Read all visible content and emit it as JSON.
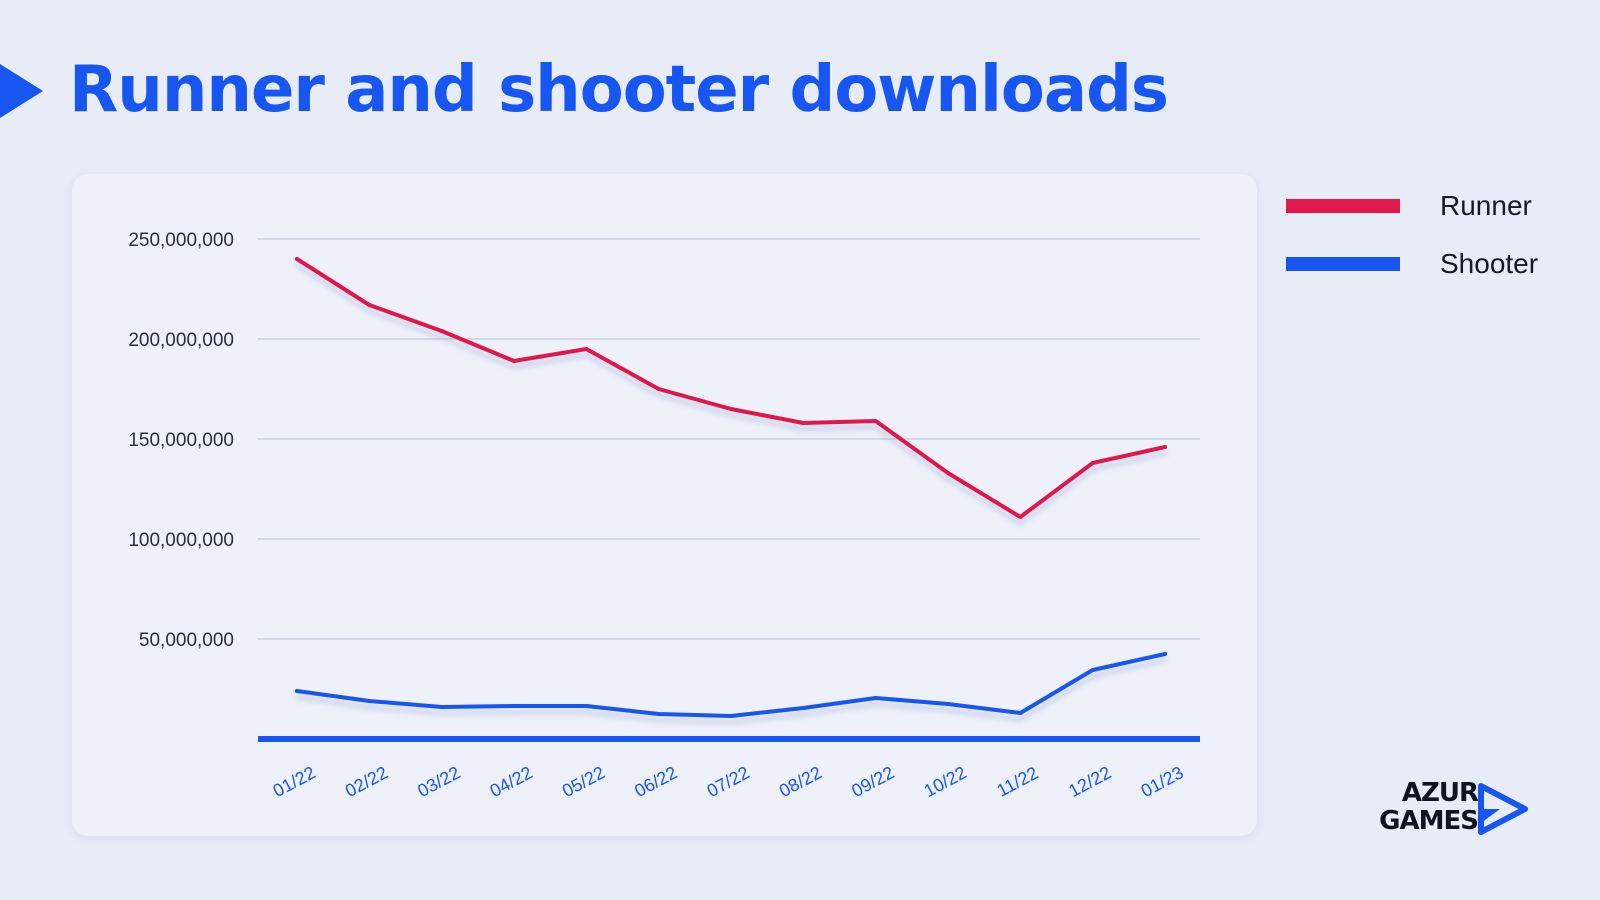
{
  "page": {
    "title": "Runner and shooter downloads"
  },
  "brand": {
    "line1": "AZUR",
    "line2": "GAMES",
    "mark_icon": "play-arrow-logo",
    "color": "#1856f2"
  },
  "legend": [
    {
      "label": "Runner",
      "color": "#e2174c"
    },
    {
      "label": "Shooter",
      "color": "#1856f2"
    }
  ],
  "chart_data": {
    "type": "line",
    "title": "",
    "xlabel": "",
    "ylabel": "",
    "categories": [
      "01/22",
      "02/22",
      "03/22",
      "04/22",
      "05/22",
      "06/22",
      "07/22",
      "08/22",
      "09/22",
      "10/22",
      "11/22",
      "12/22",
      "01/23"
    ],
    "y_ticks": [
      50000000,
      100000000,
      150000000,
      200000000,
      250000000
    ],
    "y_tick_labels": [
      "50,000,000",
      "100,000,000",
      "150,000,000",
      "200,000,000",
      "250,000,000"
    ],
    "ylim": [
      0,
      250000000
    ],
    "grid": true,
    "legend_position": "right",
    "series": [
      {
        "name": "Runner",
        "color": "#e2174c",
        "values": [
          240000000,
          217000000,
          204000000,
          189000000,
          195000000,
          175000000,
          165000000,
          158000000,
          159000000,
          133000000,
          111000000,
          138000000,
          146000000
        ]
      },
      {
        "name": "Shooter",
        "color": "#1856f2",
        "values": [
          24000000,
          19000000,
          16000000,
          16500000,
          16500000,
          12500000,
          11500000,
          15500000,
          20500000,
          17500000,
          13000000,
          34500000,
          42500000
        ]
      }
    ]
  }
}
